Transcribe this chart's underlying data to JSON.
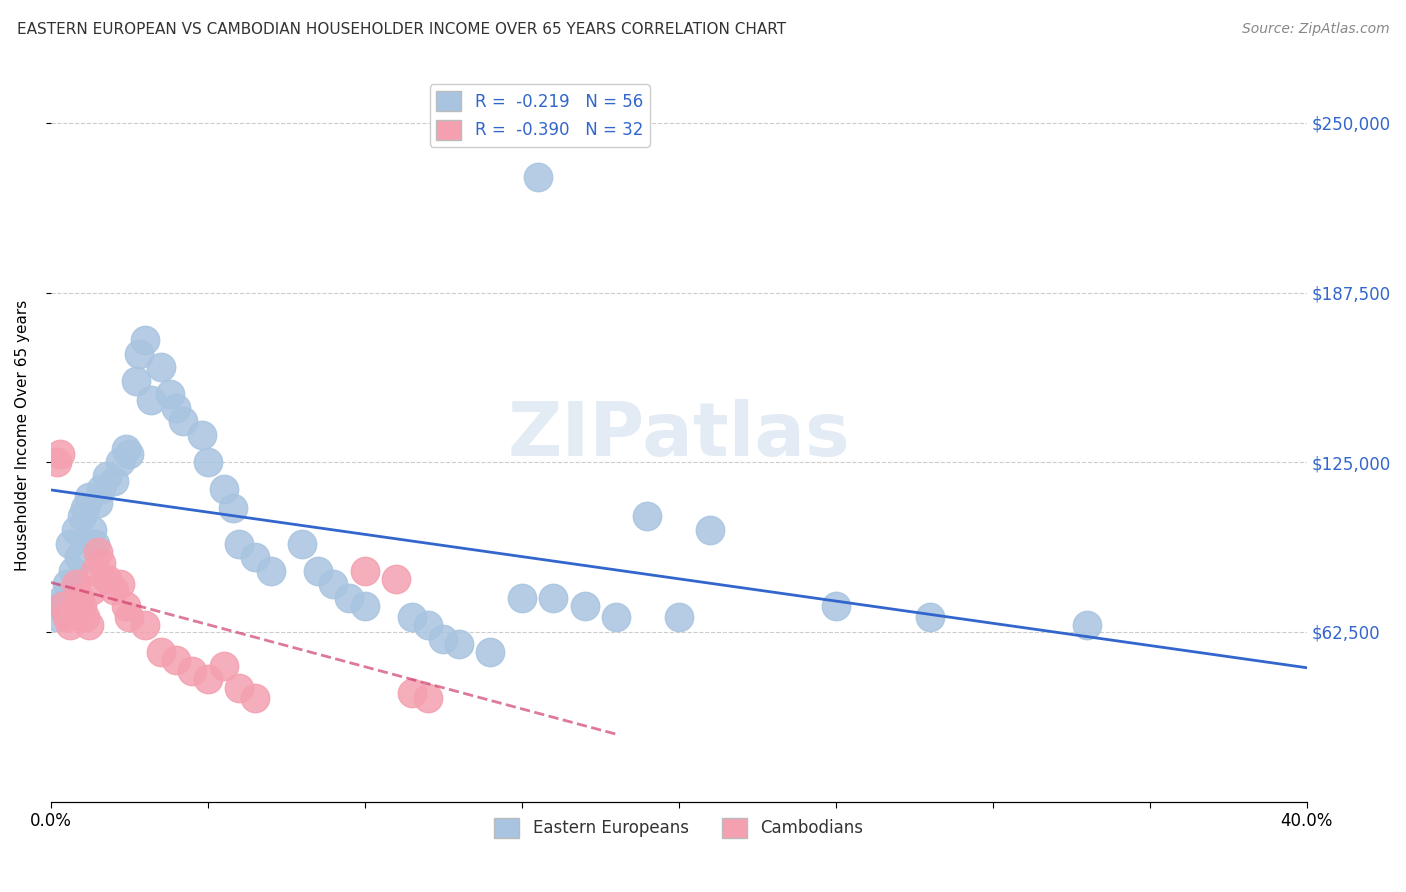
{
  "title": "EASTERN EUROPEAN VS CAMBODIAN HOUSEHOLDER INCOME OVER 65 YEARS CORRELATION CHART",
  "source": "Source: ZipAtlas.com",
  "ylabel": "Householder Income Over 65 years",
  "xlim": [
    0.0,
    0.4
  ],
  "ylim": [
    0,
    270000
  ],
  "yticks": [
    62500,
    125000,
    187500,
    250000
  ],
  "ytick_labels": [
    "$62,500",
    "$125,000",
    "$187,500",
    "$250,000"
  ],
  "xticks": [
    0.0,
    0.05,
    0.1,
    0.15,
    0.2,
    0.25,
    0.3,
    0.35,
    0.4
  ],
  "xtick_labels": [
    "0.0%",
    "",
    "",
    "",
    "",
    "",
    "",
    "",
    "40.0%"
  ],
  "background_color": "#ffffff",
  "grid_color": "#cccccc",
  "watermark": "ZIPatlas",
  "legend_r_ee": "-0.219",
  "legend_n_ee": "56",
  "legend_r_cam": "-0.390",
  "legend_n_cam": "32",
  "eastern_european_color": "#a8c4e0",
  "cambodian_color": "#f4a0b0",
  "ee_line_color": "#3366cc",
  "cam_line_color": "#cc3366",
  "eastern_europeans": [
    [
      0.002,
      68000
    ],
    [
      0.003,
      72000
    ],
    [
      0.004,
      75000
    ],
    [
      0.005,
      80000
    ],
    [
      0.006,
      95000
    ],
    [
      0.007,
      85000
    ],
    [
      0.008,
      100000
    ],
    [
      0.009,
      90000
    ],
    [
      0.01,
      105000
    ],
    [
      0.011,
      108000
    ],
    [
      0.012,
      112000
    ],
    [
      0.013,
      100000
    ],
    [
      0.014,
      95000
    ],
    [
      0.015,
      110000
    ],
    [
      0.016,
      115000
    ],
    [
      0.018,
      120000
    ],
    [
      0.02,
      118000
    ],
    [
      0.022,
      125000
    ],
    [
      0.024,
      130000
    ],
    [
      0.025,
      128000
    ],
    [
      0.027,
      155000
    ],
    [
      0.028,
      165000
    ],
    [
      0.03,
      170000
    ],
    [
      0.032,
      148000
    ],
    [
      0.035,
      160000
    ],
    [
      0.038,
      150000
    ],
    [
      0.04,
      145000
    ],
    [
      0.042,
      140000
    ],
    [
      0.048,
      135000
    ],
    [
      0.05,
      125000
    ],
    [
      0.055,
      115000
    ],
    [
      0.058,
      108000
    ],
    [
      0.06,
      95000
    ],
    [
      0.065,
      90000
    ],
    [
      0.07,
      85000
    ],
    [
      0.08,
      95000
    ],
    [
      0.085,
      85000
    ],
    [
      0.09,
      80000
    ],
    [
      0.095,
      75000
    ],
    [
      0.1,
      72000
    ],
    [
      0.115,
      68000
    ],
    [
      0.12,
      65000
    ],
    [
      0.125,
      60000
    ],
    [
      0.13,
      58000
    ],
    [
      0.14,
      55000
    ],
    [
      0.15,
      75000
    ],
    [
      0.16,
      75000
    ],
    [
      0.17,
      72000
    ],
    [
      0.18,
      68000
    ],
    [
      0.19,
      105000
    ],
    [
      0.2,
      68000
    ],
    [
      0.21,
      100000
    ],
    [
      0.25,
      72000
    ],
    [
      0.28,
      68000
    ],
    [
      0.33,
      65000
    ],
    [
      0.155,
      230000
    ]
  ],
  "cambodians": [
    [
      0.002,
      125000
    ],
    [
      0.003,
      128000
    ],
    [
      0.004,
      72000
    ],
    [
      0.005,
      68000
    ],
    [
      0.006,
      65000
    ],
    [
      0.007,
      70000
    ],
    [
      0.008,
      80000
    ],
    [
      0.009,
      75000
    ],
    [
      0.01,
      72000
    ],
    [
      0.011,
      68000
    ],
    [
      0.012,
      65000
    ],
    [
      0.013,
      78000
    ],
    [
      0.014,
      85000
    ],
    [
      0.015,
      92000
    ],
    [
      0.016,
      88000
    ],
    [
      0.018,
      82000
    ],
    [
      0.02,
      78000
    ],
    [
      0.022,
      80000
    ],
    [
      0.024,
      72000
    ],
    [
      0.025,
      68000
    ],
    [
      0.03,
      65000
    ],
    [
      0.035,
      55000
    ],
    [
      0.04,
      52000
    ],
    [
      0.045,
      48000
    ],
    [
      0.05,
      45000
    ],
    [
      0.055,
      50000
    ],
    [
      0.06,
      42000
    ],
    [
      0.065,
      38000
    ],
    [
      0.1,
      85000
    ],
    [
      0.11,
      82000
    ],
    [
      0.115,
      40000
    ],
    [
      0.12,
      38000
    ]
  ]
}
